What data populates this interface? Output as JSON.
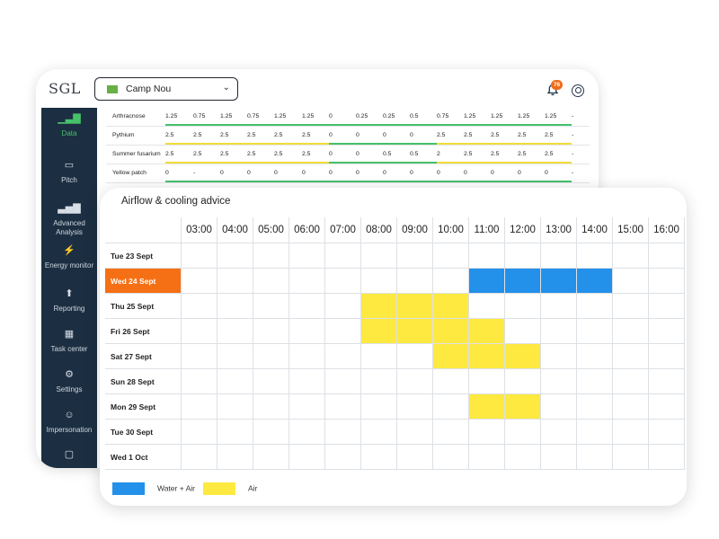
{
  "app": {
    "logo": "SGL",
    "venue": "Camp Nou",
    "notifications": "76"
  },
  "sidebar": {
    "items": [
      {
        "label": "Data",
        "icon": "bar-chart-icon",
        "active": true
      },
      {
        "label": "Pitch",
        "icon": "pitch-icon",
        "active": false
      },
      {
        "label": "Advanced Analysis",
        "icon": "analysis-icon",
        "active": false
      },
      {
        "label": "Energy monitor",
        "icon": "energy-icon",
        "active": false
      },
      {
        "label": "Reporting",
        "icon": "upload-icon",
        "active": false
      },
      {
        "label": "Task center",
        "icon": "calendar-icon",
        "active": false
      },
      {
        "label": "Settings",
        "icon": "gear-icon",
        "active": false
      },
      {
        "label": "Impersonation",
        "icon": "face-icon",
        "active": false
      },
      {
        "label": "",
        "icon": "chat-icon",
        "active": false
      }
    ]
  },
  "disease_table": {
    "rows": [
      {
        "name": "Arthracnose",
        "values": [
          "1.25",
          "0.75",
          "1.25",
          "0.75",
          "1.25",
          "1.25",
          "0",
          "0.25",
          "0.25",
          "0.5",
          "0.75",
          "1.25",
          "1.25",
          "1.25",
          "1.25",
          "-"
        ]
      },
      {
        "name": "Pythium",
        "values": [
          "2.5",
          "2.5",
          "2.5",
          "2.5",
          "2.5",
          "2.5",
          "0",
          "0",
          "0",
          "0",
          "2.5",
          "2.5",
          "2.5",
          "2.5",
          "2.5",
          "-"
        ]
      },
      {
        "name": "Summer fusarium",
        "values": [
          "2.5",
          "2.5",
          "2.5",
          "2.5",
          "2.5",
          "2.5",
          "0",
          "0",
          "0.5",
          "0.5",
          "2",
          "2.5",
          "2.5",
          "2.5",
          "2.5",
          "-"
        ]
      },
      {
        "name": "Yellow patch",
        "values": [
          "0",
          "-",
          "0",
          "0",
          "0",
          "0",
          "0",
          "0",
          "0",
          "0",
          "0",
          "0",
          "0",
          "0",
          "0",
          "-"
        ]
      }
    ]
  },
  "advice": {
    "title": "Airflow & cooling advice",
    "hours": [
      "03:00",
      "04:00",
      "05:00",
      "06:00",
      "07:00",
      "08:00",
      "09:00",
      "10:00",
      "11:00",
      "12:00",
      "13:00",
      "14:00",
      "15:00",
      "16:00"
    ],
    "days": [
      "Tue 23 Sept",
      "Wed 24 Sept",
      "Thu 25 Sept",
      "Fri 26 Sept",
      "Sat 27 Sept",
      "Sun 28 Sept",
      "Mon 29 Sept",
      "Tue 30 Sept",
      "Wed 1 Oct"
    ],
    "today_index": 1,
    "cells": [
      {
        "day": 1,
        "hours": [
          "11:00",
          "12:00",
          "13:00",
          "14:00"
        ],
        "type": "water_air"
      },
      {
        "day": 2,
        "hours": [
          "08:00",
          "09:00",
          "10:00"
        ],
        "type": "air"
      },
      {
        "day": 3,
        "hours": [
          "08:00",
          "09:00",
          "10:00",
          "11:00"
        ],
        "type": "air"
      },
      {
        "day": 4,
        "hours": [
          "10:00",
          "11:00",
          "12:00"
        ],
        "type": "air"
      },
      {
        "day": 6,
        "hours": [
          "11:00",
          "12:00"
        ],
        "type": "air"
      }
    ],
    "legend": {
      "water_air": "Water + Air",
      "air": "Air"
    },
    "colors": {
      "water_air": "#2391ea",
      "air": "#fde93f",
      "today": "#f57014",
      "accent": "#46c16a"
    }
  }
}
